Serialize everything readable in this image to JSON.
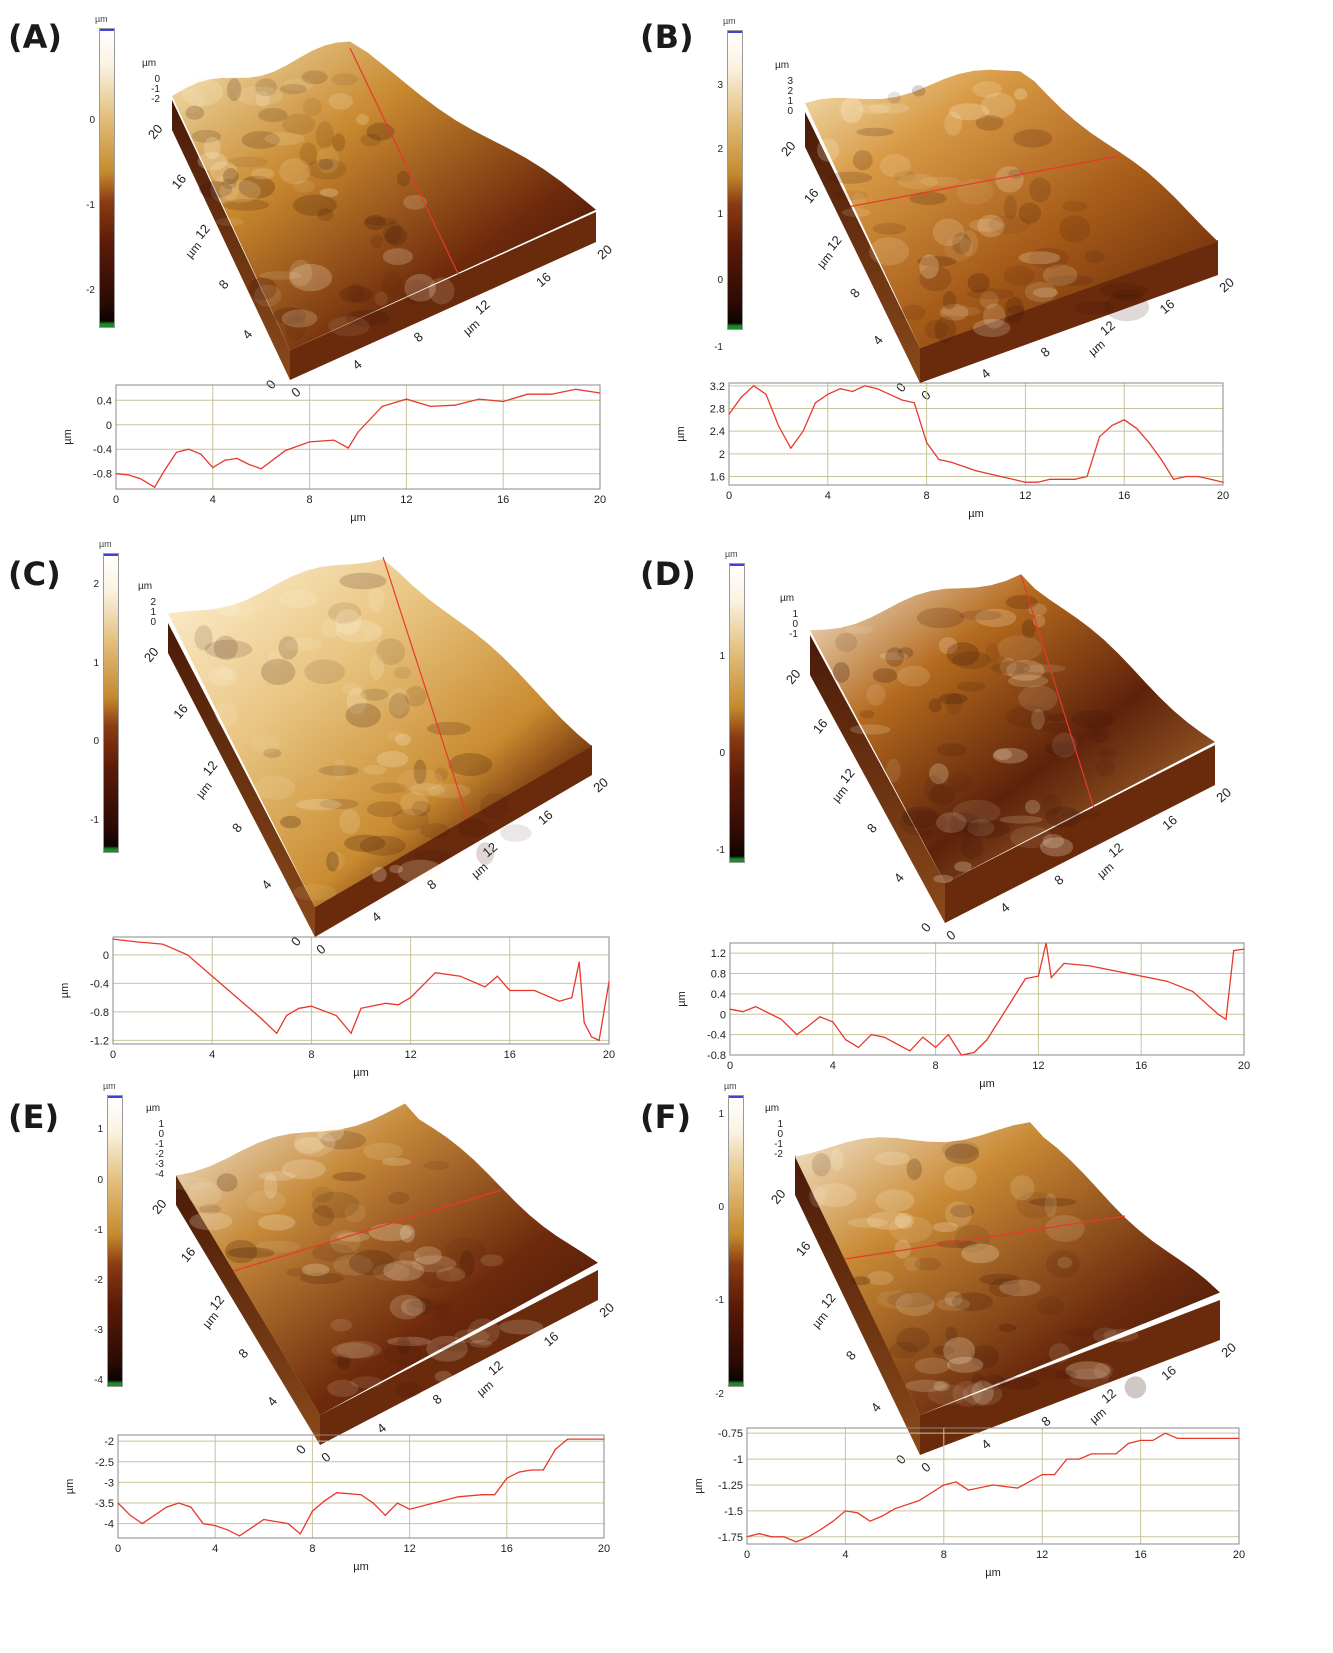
{
  "panels": [
    {
      "label": "(A)",
      "colorbar": {
        "unit": "µm",
        "ticks": [
          "0",
          "-1",
          "-2"
        ]
      },
      "surface": {
        "z_axis": {
          "unit": "µm",
          "ticks": [
            "0",
            "-1",
            "-2"
          ]
        },
        "y_axis": {
          "unit": "µm",
          "ticks": [
            "0",
            "4",
            "8",
            "12",
            "16",
            "20"
          ]
        },
        "x_axis": {
          "unit": "µm",
          "ticks": [
            "0",
            "4",
            "8",
            "12",
            "16",
            "20"
          ]
        }
      },
      "profile": {
        "xlabel": "µm",
        "ylabel": "µm",
        "xticks": [
          "0",
          "4",
          "8",
          "12",
          "16",
          "20"
        ],
        "yticks": [
          "0.4",
          "0",
          "-0.4",
          "-0.8"
        ]
      }
    },
    {
      "label": "(B)",
      "colorbar": {
        "unit": "µm",
        "ticks": [
          "3",
          "2",
          "1",
          "0",
          "-1"
        ]
      },
      "surface": {
        "z_axis": {
          "unit": "µm",
          "ticks": [
            "3",
            "2",
            "1",
            "0"
          ]
        },
        "y_axis": {
          "unit": "µm",
          "ticks": [
            "0",
            "4",
            "8",
            "12",
            "16",
            "20"
          ]
        },
        "x_axis": {
          "unit": "µm",
          "ticks": [
            "0",
            "4",
            "8",
            "12",
            "16",
            "20"
          ]
        }
      },
      "profile": {
        "xlabel": "µm",
        "ylabel": "µm",
        "xticks": [
          "0",
          "4",
          "8",
          "12",
          "16",
          "20"
        ],
        "yticks": [
          "3.2",
          "2.8",
          "2.4",
          "2",
          "1.6"
        ]
      }
    },
    {
      "label": "(C)",
      "colorbar": {
        "unit": "µm",
        "ticks": [
          "2",
          "1",
          "0",
          "-1"
        ]
      },
      "surface": {
        "z_axis": {
          "unit": "µm",
          "ticks": [
            "2",
            "1",
            "0"
          ]
        },
        "y_axis": {
          "unit": "µm",
          "ticks": [
            "0",
            "4",
            "8",
            "12",
            "16",
            "20"
          ]
        },
        "x_axis": {
          "unit": "µm",
          "ticks": [
            "0",
            "4",
            "8",
            "12",
            "16",
            "20"
          ]
        }
      },
      "profile": {
        "xlabel": "µm",
        "ylabel": "µm",
        "xticks": [
          "0",
          "4",
          "8",
          "12",
          "16",
          "20"
        ],
        "yticks": [
          "0",
          "-0.4",
          "-0.8",
          "-1.2"
        ]
      }
    },
    {
      "label": "(D)",
      "colorbar": {
        "unit": "µm",
        "ticks": [
          "1",
          "0",
          "-1"
        ]
      },
      "surface": {
        "z_axis": {
          "unit": "µm",
          "ticks": [
            "1",
            "0",
            "-1"
          ]
        },
        "y_axis": {
          "unit": "µm",
          "ticks": [
            "0",
            "4",
            "8",
            "12",
            "16",
            "20"
          ]
        },
        "x_axis": {
          "unit": "µm",
          "ticks": [
            "0",
            "4",
            "8",
            "12",
            "16",
            "20"
          ]
        }
      },
      "profile": {
        "xlabel": "µm",
        "ylabel": "µm",
        "xticks": [
          "0",
          "4",
          "8",
          "12",
          "16",
          "20"
        ],
        "yticks": [
          "1.2",
          "0.8",
          "0.4",
          "0",
          "-0.4",
          "-0.8"
        ]
      }
    },
    {
      "label": "(E)",
      "colorbar": {
        "unit": "µm",
        "ticks": [
          "1",
          "0",
          "-1",
          "-2",
          "-3",
          "-4"
        ]
      },
      "surface": {
        "z_axis": {
          "unit": "µm",
          "ticks": [
            "1",
            "0",
            "-1",
            "-2",
            "-3",
            "-4"
          ]
        },
        "y_axis": {
          "unit": "µm",
          "ticks": [
            "0",
            "4",
            "8",
            "12",
            "16",
            "20"
          ]
        },
        "x_axis": {
          "unit": "µm",
          "ticks": [
            "0",
            "4",
            "8",
            "12",
            "16",
            "20"
          ]
        }
      },
      "profile": {
        "xlabel": "µm",
        "ylabel": "µm",
        "xticks": [
          "0",
          "4",
          "8",
          "12",
          "16",
          "20"
        ],
        "yticks": [
          "-2",
          "-2.5",
          "-3",
          "-3.5",
          "-4"
        ]
      }
    },
    {
      "label": "(F)",
      "colorbar": {
        "unit": "µm",
        "ticks": [
          "1",
          "0",
          "-1",
          "-2"
        ]
      },
      "surface": {
        "z_axis": {
          "unit": "µm",
          "ticks": [
            "1",
            "0",
            "-1",
            "-2"
          ]
        },
        "y_axis": {
          "unit": "µm",
          "ticks": [
            "0",
            "4",
            "8",
            "12",
            "16",
            "20"
          ]
        },
        "x_axis": {
          "unit": "µm",
          "ticks": [
            "0",
            "4",
            "8",
            "12",
            "16",
            "20"
          ]
        }
      },
      "profile": {
        "xlabel": "µm",
        "ylabel": "µm",
        "xticks": [
          "0",
          "4",
          "8",
          "12",
          "16",
          "20"
        ],
        "yticks": [
          "-0.75",
          "-1",
          "-1.25",
          "-1.5",
          "-1.75"
        ]
      }
    }
  ],
  "colors": {
    "profile_line": "#e8382c",
    "grid": "#c8c49a",
    "surface_dark": "#3a1408",
    "surface_mid": "#b36a1e",
    "surface_light": "#f2e2b8"
  },
  "chart_data": [
    {
      "panel": "(A)",
      "type": "line",
      "xlabel": "µm",
      "ylabel": "µm",
      "xlim": [
        0,
        20
      ],
      "ylim": [
        -1.05,
        0.65
      ],
      "series": [
        {
          "x": [
            0,
            0.5,
            1,
            1.6,
            2,
            2.5,
            3,
            3.5,
            4,
            4.5,
            5,
            5.5,
            6,
            7,
            8,
            9,
            9.6,
            10,
            11,
            12,
            13,
            14,
            15,
            16,
            17,
            18,
            19,
            20
          ],
          "y": [
            -0.8,
            -0.82,
            -0.88,
            -1.02,
            -0.75,
            -0.45,
            -0.4,
            -0.48,
            -0.7,
            -0.58,
            -0.55,
            -0.65,
            -0.72,
            -0.42,
            -0.28,
            -0.25,
            -0.38,
            -0.12,
            0.3,
            0.42,
            0.3,
            0.32,
            0.42,
            0.38,
            0.5,
            0.5,
            0.58,
            0.52
          ]
        }
      ]
    },
    {
      "panel": "(B)",
      "type": "line",
      "xlabel": "µm",
      "ylabel": "µm",
      "xlim": [
        0,
        20
      ],
      "ylim": [
        1.45,
        3.25
      ],
      "series": [
        {
          "x": [
            0,
            0.5,
            1,
            1.5,
            2,
            2.5,
            3,
            3.5,
            4,
            4.5,
            5,
            5.5,
            6,
            6.5,
            7,
            7.5,
            8,
            8.5,
            9,
            10,
            11,
            12,
            12.5,
            13,
            14,
            14.5,
            15,
            15.5,
            16,
            16.5,
            17,
            17.5,
            18,
            18.5,
            19,
            19.5,
            20
          ],
          "y": [
            2.7,
            3.0,
            3.2,
            3.05,
            2.5,
            2.1,
            2.4,
            2.9,
            3.05,
            3.15,
            3.1,
            3.2,
            3.15,
            3.05,
            2.95,
            2.9,
            2.2,
            1.9,
            1.85,
            1.7,
            1.6,
            1.5,
            1.5,
            1.55,
            1.55,
            1.6,
            2.3,
            2.5,
            2.6,
            2.45,
            2.2,
            1.9,
            1.55,
            1.6,
            1.6,
            1.55,
            1.5
          ]
        }
      ]
    },
    {
      "panel": "(C)",
      "type": "line",
      "xlabel": "µm",
      "ylabel": "µm",
      "xlim": [
        0,
        20
      ],
      "ylim": [
        -1.25,
        0.25
      ],
      "series": [
        {
          "x": [
            0,
            1,
            2,
            3,
            4,
            5,
            6,
            6.6,
            7,
            7.5,
            8,
            9,
            9.6,
            10,
            11,
            11.5,
            12,
            13,
            14,
            15,
            15.5,
            16,
            17,
            18,
            18.5,
            18.8,
            19,
            19.3,
            19.6,
            20
          ],
          "y": [
            0.22,
            0.18,
            0.15,
            0.0,
            -0.3,
            -0.6,
            -0.9,
            -1.1,
            -0.85,
            -0.75,
            -0.72,
            -0.85,
            -1.1,
            -0.75,
            -0.68,
            -0.7,
            -0.6,
            -0.25,
            -0.3,
            -0.45,
            -0.3,
            -0.5,
            -0.5,
            -0.65,
            -0.6,
            -0.1,
            -0.95,
            -1.15,
            -1.2,
            -0.38
          ]
        }
      ]
    },
    {
      "panel": "(D)",
      "type": "line",
      "xlabel": "µm",
      "ylabel": "µm",
      "xlim": [
        0,
        20
      ],
      "ylim": [
        -0.8,
        1.4
      ],
      "series": [
        {
          "x": [
            0,
            0.5,
            1,
            2,
            2.6,
            3,
            3.5,
            4,
            4.5,
            5,
            5.5,
            6,
            7,
            7.5,
            8,
            8.5,
            9,
            9.5,
            10,
            11,
            11.5,
            12,
            12.3,
            12.5,
            13,
            14,
            15,
            16,
            17,
            18,
            19,
            19.3,
            19.6,
            20
          ],
          "y": [
            0.1,
            0.05,
            0.15,
            -0.1,
            -0.4,
            -0.25,
            -0.05,
            -0.15,
            -0.5,
            -0.65,
            -0.4,
            -0.45,
            -0.72,
            -0.45,
            -0.65,
            -0.4,
            -0.8,
            -0.75,
            -0.5,
            0.3,
            0.7,
            0.75,
            1.4,
            0.72,
            1.0,
            0.95,
            0.85,
            0.75,
            0.65,
            0.45,
            0.0,
            -0.1,
            1.25,
            1.28
          ]
        }
      ]
    },
    {
      "panel": "(E)",
      "type": "line",
      "xlabel": "µm",
      "ylabel": "µm",
      "xlim": [
        0,
        20
      ],
      "ylim": [
        -4.35,
        -1.85
      ],
      "series": [
        {
          "x": [
            0,
            0.5,
            1,
            2,
            2.5,
            3,
            3.5,
            4,
            4.5,
            5,
            5.5,
            6,
            7,
            7.5,
            8,
            8.5,
            9,
            10,
            10.5,
            11,
            11.5,
            12,
            13,
            14,
            15,
            15.5,
            16,
            16.5,
            17,
            17.5,
            18,
            18.5,
            19,
            19.5,
            20
          ],
          "y": [
            -3.5,
            -3.8,
            -4.0,
            -3.6,
            -3.5,
            -3.6,
            -4.0,
            -4.05,
            -4.15,
            -4.3,
            -4.1,
            -3.9,
            -4.0,
            -4.25,
            -3.7,
            -3.45,
            -3.25,
            -3.3,
            -3.5,
            -3.8,
            -3.5,
            -3.65,
            -3.5,
            -3.35,
            -3.3,
            -3.3,
            -2.9,
            -2.75,
            -2.7,
            -2.7,
            -2.2,
            -1.95,
            -1.95,
            -1.95,
            -1.95
          ]
        }
      ]
    },
    {
      "panel": "(F)",
      "type": "line",
      "xlabel": "µm",
      "ylabel": "µm",
      "xlim": [
        0,
        20
      ],
      "ylim": [
        -1.82,
        -0.7
      ],
      "series": [
        {
          "x": [
            0,
            0.5,
            1,
            1.5,
            2,
            2.5,
            3,
            3.5,
            4,
            4.5,
            5,
            5.5,
            6,
            7,
            8,
            8.5,
            9,
            10,
            11,
            12,
            12.5,
            13,
            13.5,
            14,
            15,
            15.5,
            16,
            16.5,
            17,
            17.5,
            18,
            19,
            20
          ],
          "y": [
            -1.75,
            -1.72,
            -1.75,
            -1.75,
            -1.8,
            -1.75,
            -1.68,
            -1.6,
            -1.5,
            -1.52,
            -1.6,
            -1.55,
            -1.48,
            -1.4,
            -1.25,
            -1.22,
            -1.3,
            -1.25,
            -1.28,
            -1.15,
            -1.15,
            -1.0,
            -1.0,
            -0.95,
            -0.95,
            -0.85,
            -0.82,
            -0.82,
            -0.75,
            -0.8,
            -0.8,
            -0.8,
            -0.8
          ]
        }
      ]
    }
  ]
}
